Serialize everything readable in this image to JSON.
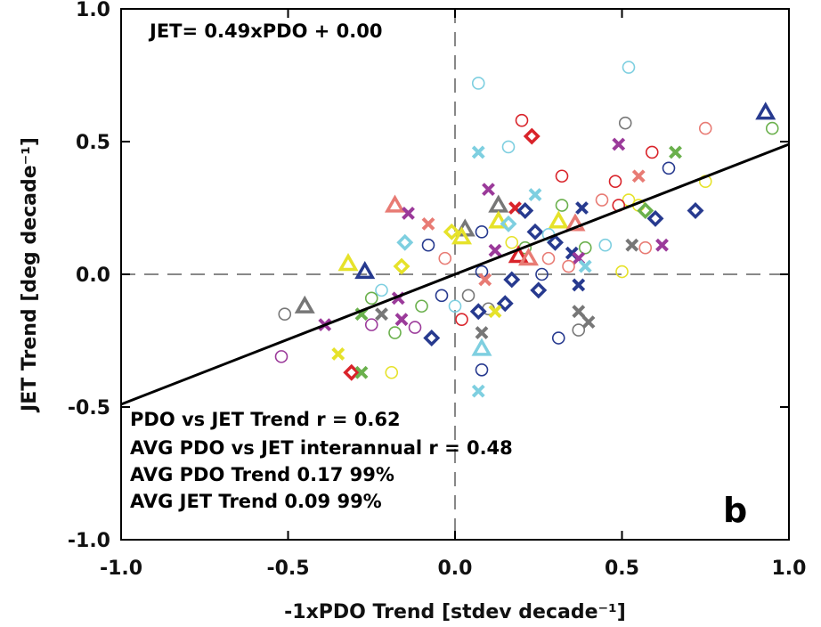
{
  "chart_data": {
    "type": "scatter",
    "xlabel": "-1xPDO Trend [stdev decade⁻¹]",
    "ylabel": "JET Trend [deg decade⁻¹]",
    "xlim": [
      -1.0,
      1.0
    ],
    "ylim": [
      -1.0,
      1.0
    ],
    "xticks": [
      "-1.0",
      "-0.5",
      "0.0",
      "0.5",
      "1.0"
    ],
    "yticks": [
      "-1.0",
      "-0.5",
      "0.0",
      "0.5",
      "1.0"
    ],
    "grid": false,
    "zero_lines": true,
    "regression": {
      "slope": 0.49,
      "intercept": 0.0,
      "label": "JET= 0.49xPDO + 0.00"
    },
    "annotations": [
      "PDO vs JET Trend r =  0.62",
      "AVG PDO vs JET interannual r =  0.48",
      "AVG PDO Trend  0.17 99%",
      "AVG JET Trend  0.09 99%"
    ],
    "panel_label": "b",
    "colors": {
      "red": "#d9232a",
      "cyan": "#7ecfe0",
      "yellow": "#e6e22a",
      "gray": "#777777",
      "purple": "#9b3a9a",
      "navy": "#273a8f",
      "green": "#6ab04c",
      "salmon": "#e87b74",
      "regression": "#000000",
      "zero_line": "#888888"
    },
    "points": [
      {
        "x": 0.52,
        "y": 0.78,
        "marker": "circle",
        "color": "cyan"
      },
      {
        "x": 0.07,
        "y": 0.72,
        "marker": "circle",
        "color": "cyan"
      },
      {
        "x": 0.93,
        "y": 0.61,
        "marker": "triangle",
        "color": "navy"
      },
      {
        "x": 0.2,
        "y": 0.58,
        "marker": "circle",
        "color": "red"
      },
      {
        "x": 0.51,
        "y": 0.57,
        "marker": "circle",
        "color": "gray"
      },
      {
        "x": 0.95,
        "y": 0.55,
        "marker": "circle",
        "color": "green"
      },
      {
        "x": 0.75,
        "y": 0.55,
        "marker": "circle",
        "color": "salmon"
      },
      {
        "x": 0.23,
        "y": 0.52,
        "marker": "diamond",
        "color": "red"
      },
      {
        "x": 0.16,
        "y": 0.48,
        "marker": "circle",
        "color": "cyan"
      },
      {
        "x": 0.49,
        "y": 0.49,
        "marker": "cross",
        "color": "purple"
      },
      {
        "x": 0.07,
        "y": 0.46,
        "marker": "cross",
        "color": "cyan"
      },
      {
        "x": 0.66,
        "y": 0.46,
        "marker": "cross",
        "color": "green"
      },
      {
        "x": 0.59,
        "y": 0.46,
        "marker": "circle",
        "color": "red"
      },
      {
        "x": 0.64,
        "y": 0.4,
        "marker": "circle",
        "color": "navy"
      },
      {
        "x": 0.32,
        "y": 0.37,
        "marker": "circle",
        "color": "red"
      },
      {
        "x": 0.55,
        "y": 0.37,
        "marker": "cross",
        "color": "salmon"
      },
      {
        "x": 0.48,
        "y": 0.35,
        "marker": "circle",
        "color": "red"
      },
      {
        "x": 0.75,
        "y": 0.35,
        "marker": "circle",
        "color": "yellow"
      },
      {
        "x": 0.1,
        "y": 0.32,
        "marker": "cross",
        "color": "purple"
      },
      {
        "x": 0.24,
        "y": 0.3,
        "marker": "cross",
        "color": "cyan"
      },
      {
        "x": 0.44,
        "y": 0.28,
        "marker": "circle",
        "color": "salmon"
      },
      {
        "x": 0.52,
        "y": 0.28,
        "marker": "circle",
        "color": "yellow"
      },
      {
        "x": 0.13,
        "y": 0.26,
        "marker": "triangle",
        "color": "gray"
      },
      {
        "x": 0.32,
        "y": 0.26,
        "marker": "circle",
        "color": "green"
      },
      {
        "x": 0.55,
        "y": 0.26,
        "marker": "circle",
        "color": "yellow"
      },
      {
        "x": -0.18,
        "y": 0.26,
        "marker": "triangle",
        "color": "salmon"
      },
      {
        "x": 0.18,
        "y": 0.25,
        "marker": "cross",
        "color": "red"
      },
      {
        "x": 0.38,
        "y": 0.25,
        "marker": "cross",
        "color": "navy"
      },
      {
        "x": 0.49,
        "y": 0.26,
        "marker": "circle",
        "color": "red"
      },
      {
        "x": 0.57,
        "y": 0.24,
        "marker": "diamond",
        "color": "green"
      },
      {
        "x": 0.21,
        "y": 0.24,
        "marker": "diamond",
        "color": "navy"
      },
      {
        "x": 0.72,
        "y": 0.24,
        "marker": "diamond",
        "color": "navy"
      },
      {
        "x": -0.14,
        "y": 0.23,
        "marker": "cross",
        "color": "purple"
      },
      {
        "x": 0.6,
        "y": 0.21,
        "marker": "diamond",
        "color": "navy"
      },
      {
        "x": 0.13,
        "y": 0.2,
        "marker": "triangle",
        "color": "yellow"
      },
      {
        "x": 0.31,
        "y": 0.2,
        "marker": "triangle",
        "color": "yellow"
      },
      {
        "x": 0.16,
        "y": 0.19,
        "marker": "diamond",
        "color": "cyan"
      },
      {
        "x": 0.36,
        "y": 0.19,
        "marker": "triangle",
        "color": "salmon"
      },
      {
        "x": -0.08,
        "y": 0.19,
        "marker": "cross",
        "color": "salmon"
      },
      {
        "x": 0.03,
        "y": 0.17,
        "marker": "triangle",
        "color": "gray"
      },
      {
        "x": 0.24,
        "y": 0.16,
        "marker": "diamond",
        "color": "navy"
      },
      {
        "x": -0.01,
        "y": 0.16,
        "marker": "diamond",
        "color": "yellow"
      },
      {
        "x": 0.08,
        "y": 0.16,
        "marker": "circle",
        "color": "navy"
      },
      {
        "x": 0.02,
        "y": 0.14,
        "marker": "triangle",
        "color": "yellow"
      },
      {
        "x": 0.28,
        "y": 0.15,
        "marker": "circle",
        "color": "cyan"
      },
      {
        "x": -0.15,
        "y": 0.12,
        "marker": "diamond",
        "color": "cyan"
      },
      {
        "x": -0.08,
        "y": 0.11,
        "marker": "circle",
        "color": "navy"
      },
      {
        "x": 0.17,
        "y": 0.12,
        "marker": "circle",
        "color": "yellow"
      },
      {
        "x": 0.3,
        "y": 0.12,
        "marker": "diamond",
        "color": "navy"
      },
      {
        "x": 0.45,
        "y": 0.11,
        "marker": "circle",
        "color": "cyan"
      },
      {
        "x": 0.53,
        "y": 0.11,
        "marker": "cross",
        "color": "gray"
      },
      {
        "x": 0.62,
        "y": 0.11,
        "marker": "cross",
        "color": "purple"
      },
      {
        "x": 0.39,
        "y": 0.1,
        "marker": "circle",
        "color": "green"
      },
      {
        "x": 0.57,
        "y": 0.1,
        "marker": "circle",
        "color": "salmon"
      },
      {
        "x": 0.21,
        "y": 0.1,
        "marker": "circle",
        "color": "green"
      },
      {
        "x": 0.12,
        "y": 0.09,
        "marker": "cross",
        "color": "purple"
      },
      {
        "x": 0.35,
        "y": 0.08,
        "marker": "cross",
        "color": "navy"
      },
      {
        "x": 0.19,
        "y": 0.07,
        "marker": "triangle",
        "color": "red"
      },
      {
        "x": 0.22,
        "y": 0.06,
        "marker": "triangle",
        "color": "salmon"
      },
      {
        "x": 0.37,
        "y": 0.06,
        "marker": "cross",
        "color": "purple"
      },
      {
        "x": 0.28,
        "y": 0.06,
        "marker": "circle",
        "color": "salmon"
      },
      {
        "x": -0.03,
        "y": 0.06,
        "marker": "circle",
        "color": "salmon"
      },
      {
        "x": -0.32,
        "y": 0.04,
        "marker": "triangle",
        "color": "yellow"
      },
      {
        "x": -0.16,
        "y": 0.03,
        "marker": "diamond",
        "color": "yellow"
      },
      {
        "x": 0.34,
        "y": 0.03,
        "marker": "circle",
        "color": "salmon"
      },
      {
        "x": 0.39,
        "y": 0.03,
        "marker": "cross",
        "color": "cyan"
      },
      {
        "x": -0.27,
        "y": 0.01,
        "marker": "triangle",
        "color": "navy"
      },
      {
        "x": 0.5,
        "y": 0.01,
        "marker": "circle",
        "color": "yellow"
      },
      {
        "x": 0.08,
        "y": 0.01,
        "marker": "circle",
        "color": "navy"
      },
      {
        "x": 0.26,
        "y": 0.0,
        "marker": "circle",
        "color": "navy"
      },
      {
        "x": 0.17,
        "y": -0.02,
        "marker": "diamond",
        "color": "navy"
      },
      {
        "x": 0.09,
        "y": -0.02,
        "marker": "cross",
        "color": "salmon"
      },
      {
        "x": 0.37,
        "y": -0.04,
        "marker": "cross",
        "color": "navy"
      },
      {
        "x": 0.25,
        "y": -0.06,
        "marker": "diamond",
        "color": "navy"
      },
      {
        "x": -0.22,
        "y": -0.06,
        "marker": "circle",
        "color": "cyan"
      },
      {
        "x": -0.25,
        "y": -0.09,
        "marker": "circle",
        "color": "green"
      },
      {
        "x": -0.17,
        "y": -0.09,
        "marker": "cross",
        "color": "purple"
      },
      {
        "x": 0.04,
        "y": -0.08,
        "marker": "circle",
        "color": "gray"
      },
      {
        "x": -0.04,
        "y": -0.08,
        "marker": "circle",
        "color": "navy"
      },
      {
        "x": 0.15,
        "y": -0.11,
        "marker": "diamond",
        "color": "navy"
      },
      {
        "x": -0.45,
        "y": -0.12,
        "marker": "triangle",
        "color": "gray"
      },
      {
        "x": 0.0,
        "y": -0.12,
        "marker": "circle",
        "color": "cyan"
      },
      {
        "x": -0.1,
        "y": -0.12,
        "marker": "circle",
        "color": "green"
      },
      {
        "x": 0.1,
        "y": -0.13,
        "marker": "circle",
        "color": "gray"
      },
      {
        "x": 0.07,
        "y": -0.14,
        "marker": "diamond",
        "color": "navy"
      },
      {
        "x": 0.37,
        "y": -0.14,
        "marker": "cross",
        "color": "gray"
      },
      {
        "x": 0.12,
        "y": -0.14,
        "marker": "cross",
        "color": "yellow"
      },
      {
        "x": -0.51,
        "y": -0.15,
        "marker": "circle",
        "color": "gray"
      },
      {
        "x": -0.28,
        "y": -0.15,
        "marker": "cross",
        "color": "green"
      },
      {
        "x": -0.22,
        "y": -0.15,
        "marker": "cross",
        "color": "gray"
      },
      {
        "x": -0.16,
        "y": -0.17,
        "marker": "cross",
        "color": "purple"
      },
      {
        "x": 0.02,
        "y": -0.17,
        "marker": "circle",
        "color": "red"
      },
      {
        "x": 0.4,
        "y": -0.18,
        "marker": "cross",
        "color": "gray"
      },
      {
        "x": -0.39,
        "y": -0.19,
        "marker": "cross",
        "color": "purple"
      },
      {
        "x": -0.25,
        "y": -0.19,
        "marker": "circle",
        "color": "purple"
      },
      {
        "x": -0.12,
        "y": -0.2,
        "marker": "circle",
        "color": "purple"
      },
      {
        "x": 0.37,
        "y": -0.21,
        "marker": "circle",
        "color": "gray"
      },
      {
        "x": -0.18,
        "y": -0.22,
        "marker": "circle",
        "color": "green"
      },
      {
        "x": 0.08,
        "y": -0.22,
        "marker": "cross",
        "color": "gray"
      },
      {
        "x": -0.07,
        "y": -0.24,
        "marker": "diamond",
        "color": "navy"
      },
      {
        "x": 0.31,
        "y": -0.24,
        "marker": "circle",
        "color": "navy"
      },
      {
        "x": 0.08,
        "y": -0.28,
        "marker": "triangle",
        "color": "cyan"
      },
      {
        "x": -0.35,
        "y": -0.3,
        "marker": "cross",
        "color": "yellow"
      },
      {
        "x": -0.52,
        "y": -0.31,
        "marker": "circle",
        "color": "purple"
      },
      {
        "x": 0.08,
        "y": -0.36,
        "marker": "circle",
        "color": "navy"
      },
      {
        "x": -0.31,
        "y": -0.37,
        "marker": "diamond",
        "color": "red"
      },
      {
        "x": -0.28,
        "y": -0.37,
        "marker": "cross",
        "color": "green"
      },
      {
        "x": -0.19,
        "y": -0.37,
        "marker": "circle",
        "color": "yellow"
      },
      {
        "x": 0.07,
        "y": -0.44,
        "marker": "cross",
        "color": "cyan"
      }
    ]
  }
}
